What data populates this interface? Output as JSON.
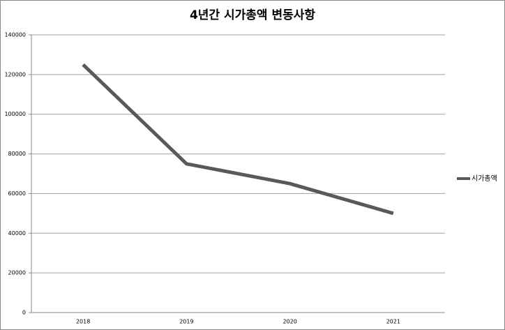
{
  "chart_data": {
    "type": "line",
    "title": "4년간 시가총액 변동사항",
    "categories": [
      "2018",
      "2019",
      "2020",
      "2021"
    ],
    "series": [
      {
        "name": "시가총액",
        "color": "#595959",
        "values": [
          125000,
          75000,
          65000,
          50000
        ]
      }
    ],
    "ylim": [
      0,
      140000
    ],
    "yticks": [
      0,
      20000,
      40000,
      60000,
      80000,
      100000,
      120000,
      140000
    ],
    "grid": true,
    "legend": "right"
  }
}
